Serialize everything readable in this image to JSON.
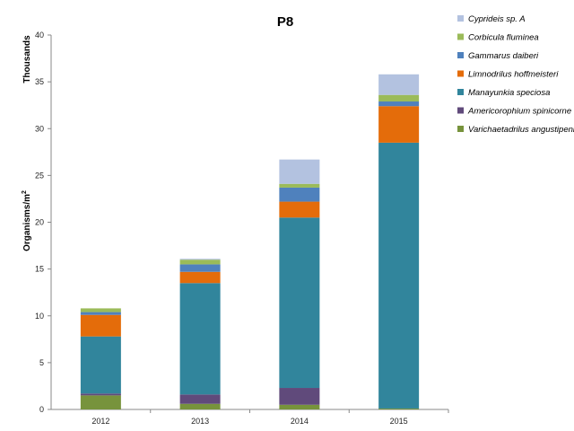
{
  "chart_data": {
    "type": "bar",
    "stacked": true,
    "title": "P8",
    "units_label": "Thousands",
    "ylabel": "Organisms/m",
    "ylabel_superscript": "2",
    "categories": [
      "2012",
      "2013",
      "2014",
      "2015"
    ],
    "ylim": [
      0,
      40
    ],
    "yticks": [
      0,
      5,
      10,
      15,
      20,
      25,
      30,
      35,
      40
    ],
    "grid": false,
    "legend_position": "right",
    "series": [
      {
        "name": "Varichaetadrilus angustipenis",
        "color": "#77933C",
        "values": [
          1.5,
          0.6,
          0.5,
          0.1
        ]
      },
      {
        "name": "Americorophium spinicorne",
        "color": "#604A7B",
        "values": [
          0.2,
          1.0,
          1.8,
          0.0
        ]
      },
      {
        "name": "Manayunkia speciosa",
        "color": "#31859C",
        "values": [
          6.1,
          11.9,
          18.2,
          28.4
        ]
      },
      {
        "name": "Limnodrilus hoffmeisteri",
        "color": "#E46C0A",
        "values": [
          2.3,
          1.2,
          1.7,
          3.9
        ]
      },
      {
        "name": "Gammarus daiberi",
        "color": "#4F81BD",
        "values": [
          0.3,
          0.8,
          1.5,
          0.5
        ]
      },
      {
        "name": "Corbicula fluminea",
        "color": "#9BBB59",
        "values": [
          0.4,
          0.5,
          0.4,
          0.7
        ]
      },
      {
        "name": "Cyprideis sp. A",
        "color": "#B3C2E0",
        "values": [
          0.0,
          0.1,
          2.6,
          2.2
        ]
      }
    ]
  }
}
